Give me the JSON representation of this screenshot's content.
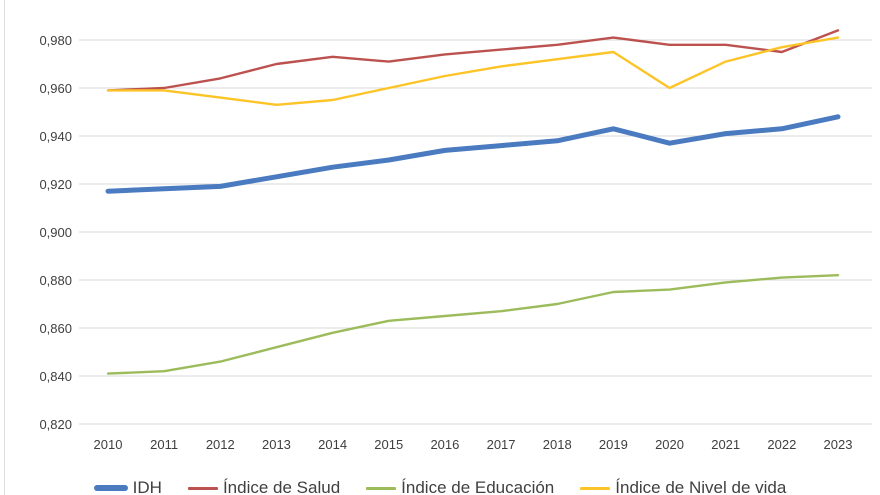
{
  "chart_data": {
    "type": "line",
    "x": [
      2010,
      2011,
      2012,
      2013,
      2014,
      2015,
      2016,
      2017,
      2018,
      2019,
      2020,
      2021,
      2022,
      2023
    ],
    "x_tick_labels": [
      "2010",
      "2011",
      "2012",
      "2013",
      "2014",
      "2015",
      "2016",
      "2017",
      "2018",
      "2019",
      "2020",
      "2021",
      "2022",
      "2023"
    ],
    "series": [
      {
        "name": "IDH",
        "color": "#4a7abf",
        "emphasis": "thick",
        "values": [
          0.917,
          0.918,
          0.919,
          0.923,
          0.927,
          0.93,
          0.934,
          0.936,
          0.938,
          0.943,
          0.937,
          0.941,
          0.943,
          0.948
        ]
      },
      {
        "name": "Índice de Salud",
        "color": "#bc524f",
        "emphasis": "thin",
        "values": [
          0.959,
          0.96,
          0.964,
          0.97,
          0.973,
          0.971,
          0.974,
          0.976,
          0.978,
          0.981,
          0.978,
          0.978,
          0.975,
          0.984
        ]
      },
      {
        "name": "Índice de Educación",
        "color": "#9cbc5c",
        "emphasis": "thin",
        "values": [
          0.841,
          0.842,
          0.846,
          0.852,
          0.858,
          0.863,
          0.865,
          0.867,
          0.87,
          0.875,
          0.876,
          0.879,
          0.881,
          0.882
        ]
      },
      {
        "name": "Índice de Nivel de vida",
        "color": "#fdc428",
        "emphasis": "thin",
        "values": [
          0.959,
          0.959,
          0.956,
          0.953,
          0.955,
          0.96,
          0.965,
          0.969,
          0.972,
          0.975,
          0.96,
          0.971,
          0.977,
          0.981
        ]
      }
    ],
    "y_axis": {
      "tick_values": [
        0.98,
        0.96,
        0.94,
        0.92,
        0.9,
        0.88,
        0.86,
        0.84,
        0.82
      ],
      "tick_labels": [
        "0,980",
        "0,960",
        "0,940",
        "0,920",
        "0,900",
        "0,880",
        "0,860",
        "0,840",
        "0,820"
      ]
    },
    "ylim": [
      0.82,
      0.98
    ],
    "title": "",
    "xlabel": "",
    "ylabel": "",
    "grid": "horizontal",
    "gridline_color": "#d9d9d9",
    "legend_position": "bottom",
    "decimal_separator": ","
  }
}
